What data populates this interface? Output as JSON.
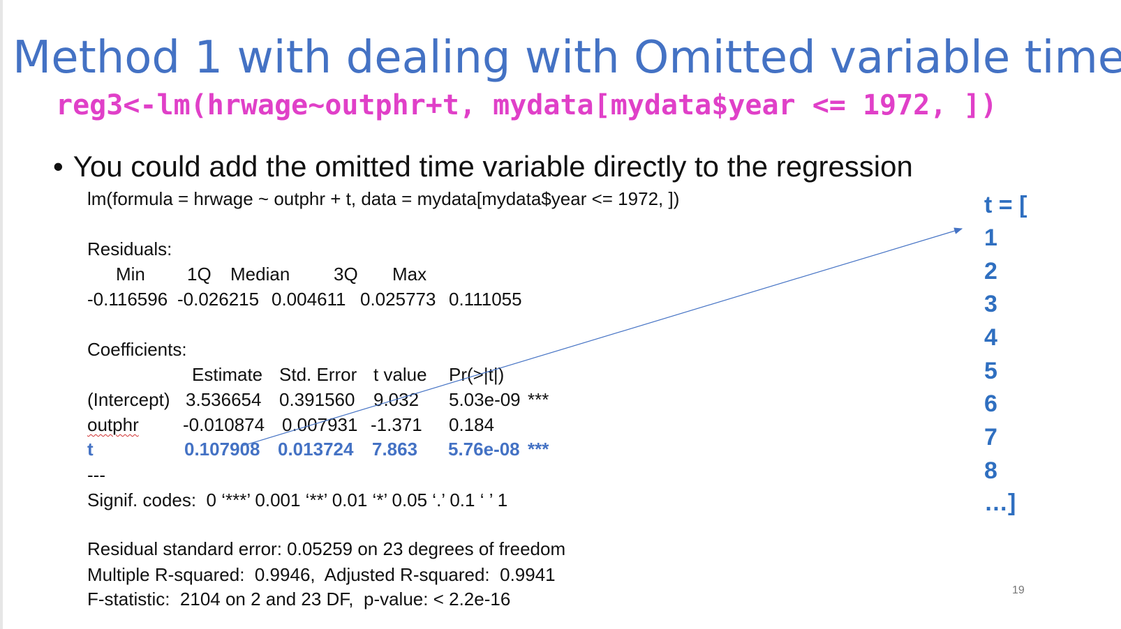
{
  "slide": {
    "title": "Method 1 with dealing with Omitted variable time",
    "code_line": "reg3<-lm(hrwage~outphr+t, mydata[mydata$year <= 1972, ])",
    "bullet": "You could add the omitted time variable directly to the regression",
    "page_number": "19"
  },
  "output": {
    "call": "lm(formula = hrwage ~ outphr + t, data = mydata[mydata$year <= 1972, ])",
    "residuals_label": "Residuals:",
    "residuals_header": [
      "Min",
      "1Q",
      "Median",
      "3Q",
      "Max"
    ],
    "residuals_values": [
      "-0.116596",
      "-0.026215",
      "0.004611",
      "0.025773",
      "0.111055"
    ],
    "coefficients_label": "Coefficients:",
    "coef_header": [
      "Estimate",
      "Std. Error",
      "t value",
      "Pr(>|t|)"
    ],
    "coef_rows": [
      {
        "name": "(Intercept)",
        "estimate": "3.536654",
        "std_error": "0.391560",
        "t_value": "9.032",
        "p_value": "5.03e-09",
        "signif": "***"
      },
      {
        "name": "outphr",
        "estimate": "-0.010874",
        "std_error": "0.007931",
        "t_value": "-1.371",
        "p_value": "0.184",
        "signif": ""
      },
      {
        "name": "t",
        "estimate": "0.107908",
        "std_error": "0.013724",
        "t_value": "7.863",
        "p_value": "5.76e-08",
        "signif": "***"
      }
    ],
    "separator": "---",
    "signif_codes": "Signif. codes:  0 ‘***’ 0.001 ‘**’ 0.01 ‘*’ 0.05 ‘.’ 0.1 ‘ ’ 1",
    "rse": "Residual standard error: 0.05259 on 23 degrees of freedom",
    "r_squared": "Multiple R-squared:  0.9946,  Adjusted R-squared:  0.9941",
    "f_statistic": "F-statistic:  2104 on 2 and 23 DF,  p-value: < 2.2e-16"
  },
  "t_vector": {
    "header": "t = [",
    "values": [
      "1",
      "2",
      "3",
      "4",
      "5",
      "6",
      "7",
      "8"
    ],
    "footer": "…]"
  },
  "colors": {
    "title": "#4472c4",
    "code": "#e040c8",
    "highlight": "#4472c4",
    "t_vector": "#2f6fc0"
  }
}
